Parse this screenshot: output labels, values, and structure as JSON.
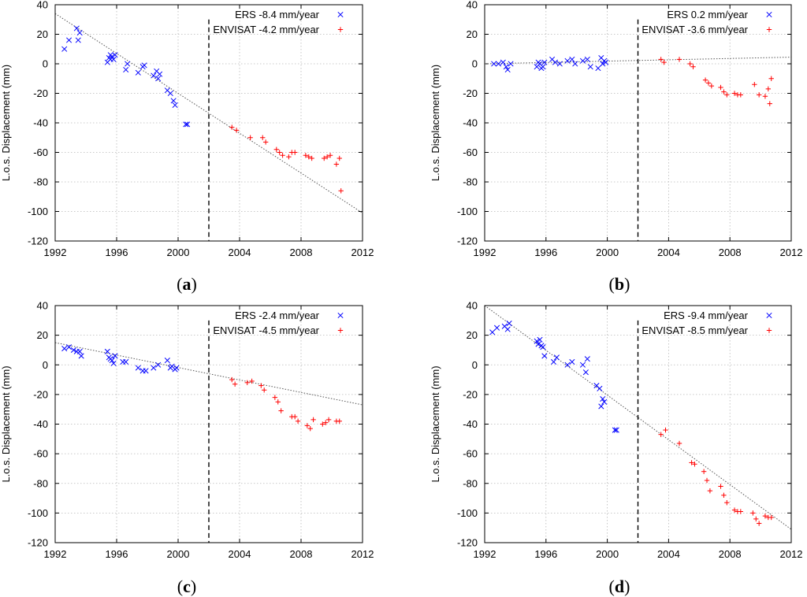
{
  "chart_data": [
    {
      "type": "scatter",
      "panel_label": "a",
      "ylabel": "L.o.s. Displacement (mm)",
      "xlim": [
        1992,
        2012
      ],
      "ylim": [
        -120,
        40
      ],
      "xticks": [
        "1992",
        "1996",
        "2000",
        "2004",
        "2008",
        "2012"
      ],
      "yticks": [
        "40",
        "20",
        "0",
        "-20",
        "-40",
        "-60",
        "-80",
        "-100",
        "-120"
      ],
      "grid": true,
      "legend_position": "top-right",
      "vline_x": 2002,
      "trend": {
        "x": [
          1992,
          2012
        ],
        "y": [
          34,
          -101
        ]
      },
      "series": [
        {
          "name": "ERS -8.4 mm/year",
          "marker": "x",
          "color": "#0000ff",
          "x": [
            1992.6,
            1992.9,
            1993.4,
            1993.6,
            1993.5,
            1995.4,
            1995.5,
            1995.6,
            1995.7,
            1995.8,
            1995.9,
            1995.6,
            1996.6,
            1996.7,
            1997.4,
            1997.7,
            1997.8,
            1998.4,
            1998.6,
            1998.7,
            1998.8,
            1999.3,
            1999.5,
            1999.7,
            1999.8,
            2000.5,
            2000.6
          ],
          "y": [
            10,
            16,
            24,
            21,
            16,
            1,
            4,
            6,
            5,
            3,
            6,
            3,
            -4,
            0,
            -6,
            -2,
            -1,
            -8,
            -5,
            -10,
            -7,
            -18,
            -20,
            -25,
            -28,
            -41,
            -41
          ]
        },
        {
          "name": "ENVISAT -4.2 mm/year",
          "marker": "+",
          "color": "#ff0000",
          "x": [
            2003.5,
            2003.8,
            2004.7,
            2005.5,
            2005.7,
            2006.4,
            2006.6,
            2006.8,
            2007.2,
            2007.4,
            2007.6,
            2008.3,
            2008.5,
            2008.7,
            2009.5,
            2009.7,
            2009.9,
            2010.3,
            2010.5,
            2010.6
          ],
          "y": [
            -43,
            -45,
            -50,
            -50,
            -53,
            -58,
            -60,
            -62,
            -63,
            -60,
            -60,
            -62,
            -63,
            -64,
            -64,
            -63,
            -62,
            -68,
            -64,
            -86
          ]
        }
      ]
    },
    {
      "type": "scatter",
      "panel_label": "b",
      "ylabel": "L.o.s. Displacement (mm)",
      "xlim": [
        1992,
        2012
      ],
      "ylim": [
        -120,
        40
      ],
      "xticks": [
        "1992",
        "1996",
        "2000",
        "2004",
        "2008",
        "2012"
      ],
      "yticks": [
        "40",
        "20",
        "0",
        "-20",
        "-40",
        "-60",
        "-80",
        "-100",
        "-120"
      ],
      "grid": true,
      "legend_position": "top-right",
      "vline_x": 2002,
      "trend": {
        "x": [
          1992,
          2012
        ],
        "y": [
          0,
          4.5
        ]
      },
      "series": [
        {
          "name": "ERS 0.2 mm/year",
          "marker": "x",
          "color": "#0000ff",
          "x": [
            1992.6,
            1992.9,
            1993.2,
            1993.4,
            1993.5,
            1993.7,
            1995.4,
            1995.5,
            1995.6,
            1995.7,
            1995.8,
            1995.9,
            1996.4,
            1996.6,
            1996.9,
            1997.4,
            1997.7,
            1997.9,
            1998.4,
            1998.7,
            1998.9,
            1999.4,
            1999.6,
            1999.7,
            1999.8,
            1999.9
          ],
          "y": [
            0,
            0,
            1,
            -2,
            -4,
            0,
            -2,
            1,
            0,
            -3,
            -2,
            1,
            3,
            1,
            0,
            2,
            3,
            0,
            2,
            3,
            -2,
            -3,
            4,
            0,
            2,
            1
          ]
        },
        {
          "name": "ENVISAT -3.6 mm/year",
          "marker": "+",
          "color": "#ff0000",
          "x": [
            2003.5,
            2003.7,
            2004.7,
            2005.4,
            2005.6,
            2006.4,
            2006.6,
            2006.8,
            2007.4,
            2007.6,
            2007.8,
            2008.3,
            2008.5,
            2008.7,
            2009.6,
            2009.9,
            2010.3,
            2010.5,
            2010.6,
            2010.7
          ],
          "y": [
            3,
            1,
            3,
            0,
            -2,
            -11,
            -13,
            -15,
            -16,
            -19,
            -21,
            -20,
            -21,
            -21,
            -14,
            -21,
            -22,
            -17,
            -27,
            -10
          ]
        }
      ]
    },
    {
      "type": "scatter",
      "panel_label": "c",
      "ylabel": "L.o.s. Displacement (mm)",
      "xlim": [
        1992,
        2012
      ],
      "ylim": [
        -120,
        40
      ],
      "xticks": [
        "1992",
        "1996",
        "2000",
        "2004",
        "2008",
        "2012"
      ],
      "yticks": [
        "40",
        "20",
        "0",
        "-20",
        "-40",
        "-60",
        "-80",
        "-100",
        "-120"
      ],
      "grid": true,
      "legend_position": "top-right",
      "vline_x": 2002,
      "trend": {
        "x": [
          1992,
          2012
        ],
        "y": [
          15,
          -27
        ]
      },
      "series": [
        {
          "name": "ERS -2.4 mm/year",
          "marker": "x",
          "color": "#0000ff",
          "x": [
            1992.6,
            1992.9,
            1993.2,
            1993.4,
            1993.6,
            1993.7,
            1995.4,
            1995.5,
            1995.6,
            1995.7,
            1995.8,
            1995.9,
            1996.4,
            1996.6,
            1997.4,
            1997.7,
            1997.9,
            1998.4,
            1998.7,
            1999.3,
            1999.5,
            1999.6,
            1999.8,
            1999.9
          ],
          "y": [
            11,
            12,
            10,
            9,
            9,
            6,
            9,
            5,
            4,
            3,
            1,
            6,
            2,
            2,
            -2,
            -4,
            -4,
            -2,
            0,
            3,
            -2,
            -1,
            -3,
            -2
          ]
        },
        {
          "name": "ENVISAT -4.5 mm/year",
          "marker": "+",
          "color": "#ff0000",
          "x": [
            2003.5,
            2003.7,
            2004.5,
            2004.8,
            2005.4,
            2005.6,
            2006.3,
            2006.5,
            2006.7,
            2007.4,
            2007.6,
            2007.8,
            2008.4,
            2008.6,
            2008.8,
            2009.4,
            2009.6,
            2009.8,
            2010.3,
            2010.5
          ],
          "y": [
            -10,
            -13,
            -12,
            -11,
            -14,
            -17,
            -22,
            -25,
            -31,
            -35,
            -35,
            -38,
            -41,
            -43,
            -37,
            -40,
            -39,
            -37,
            -38,
            -38
          ]
        }
      ]
    },
    {
      "type": "scatter",
      "panel_label": "d",
      "ylabel": "L.o.s. Displacement (mm)",
      "xlim": [
        1992,
        2012
      ],
      "ylim": [
        -120,
        40
      ],
      "xticks": [
        "1992",
        "1996",
        "2000",
        "2004",
        "2008",
        "2012"
      ],
      "yticks": [
        "40",
        "20",
        "0",
        "-20",
        "-40",
        "-60",
        "-80",
        "-100",
        "-120"
      ],
      "grid": true,
      "legend_position": "top-right",
      "vline_x": 2002,
      "trend": {
        "x": [
          1992,
          2012
        ],
        "y": [
          40,
          -111
        ]
      },
      "series": [
        {
          "name": "ERS -9.4 mm/year",
          "marker": "x",
          "color": "#0000ff",
          "x": [
            1992.5,
            1992.8,
            1993.3,
            1993.5,
            1993.6,
            1995.4,
            1995.5,
            1995.6,
            1995.7,
            1995.8,
            1995.9,
            1996.5,
            1996.7,
            1997.4,
            1997.7,
            1998.4,
            1998.6,
            1998.7,
            1999.3,
            1999.5,
            1999.6,
            1999.7,
            1999.8,
            2000.5,
            2000.6
          ],
          "y": [
            22,
            25,
            26,
            24,
            28,
            16,
            14,
            17,
            13,
            12,
            6,
            2,
            5,
            0,
            2,
            0,
            -5,
            4,
            -14,
            -16,
            -28,
            -23,
            -25,
            -44,
            -44
          ]
        },
        {
          "name": "ENVISAT -8.5 mm/year",
          "marker": "+",
          "color": "#ff0000",
          "x": [
            2003.5,
            2003.8,
            2004.7,
            2005.5,
            2005.7,
            2006.3,
            2006.5,
            2006.7,
            2007.4,
            2007.6,
            2007.8,
            2008.3,
            2008.5,
            2008.7,
            2009.5,
            2009.7,
            2009.9,
            2010.3,
            2010.5,
            2010.7
          ],
          "y": [
            -47,
            -44,
            -53,
            -66,
            -67,
            -72,
            -78,
            -85,
            -82,
            -88,
            -93,
            -98,
            -99,
            -99,
            -100,
            -104,
            -107,
            -102,
            -103,
            -103
          ]
        }
      ]
    }
  ]
}
